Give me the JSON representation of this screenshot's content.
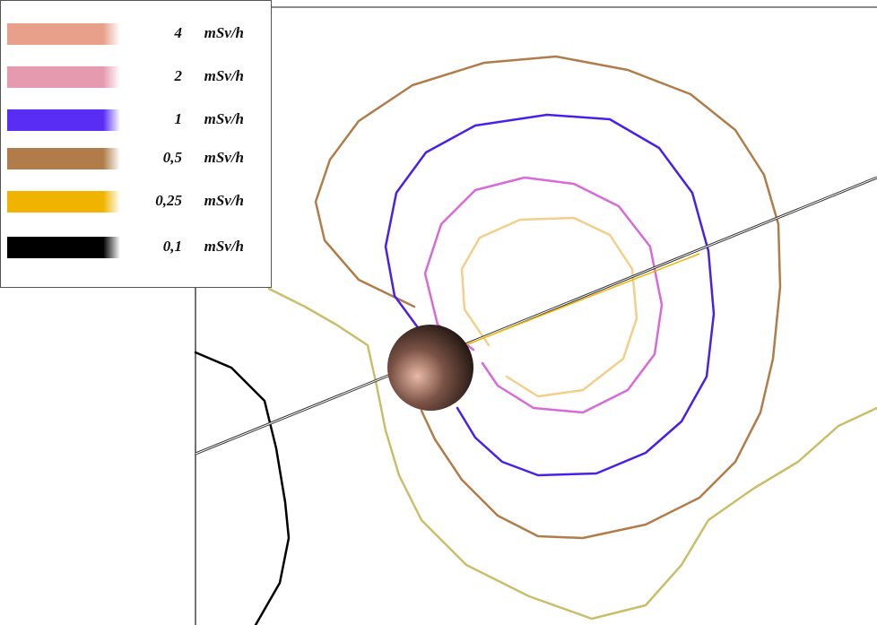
{
  "legend": {
    "items": [
      {
        "value": "4",
        "unit": "mSv/h",
        "color": "#e8a08a"
      },
      {
        "value": "2",
        "unit": "mSv/h",
        "color": "#e59ab0"
      },
      {
        "value": "1",
        "unit": "mSv/h",
        "color": "#5a2df5"
      },
      {
        "value": "0,5",
        "unit": "mSv/h",
        "color": "#b07d4a"
      },
      {
        "value": "0,25",
        "unit": "mSv/h",
        "color": "#f0b400"
      },
      {
        "value": "0,1",
        "unit": "mSv/h",
        "color": "#000000"
      }
    ]
  }
}
